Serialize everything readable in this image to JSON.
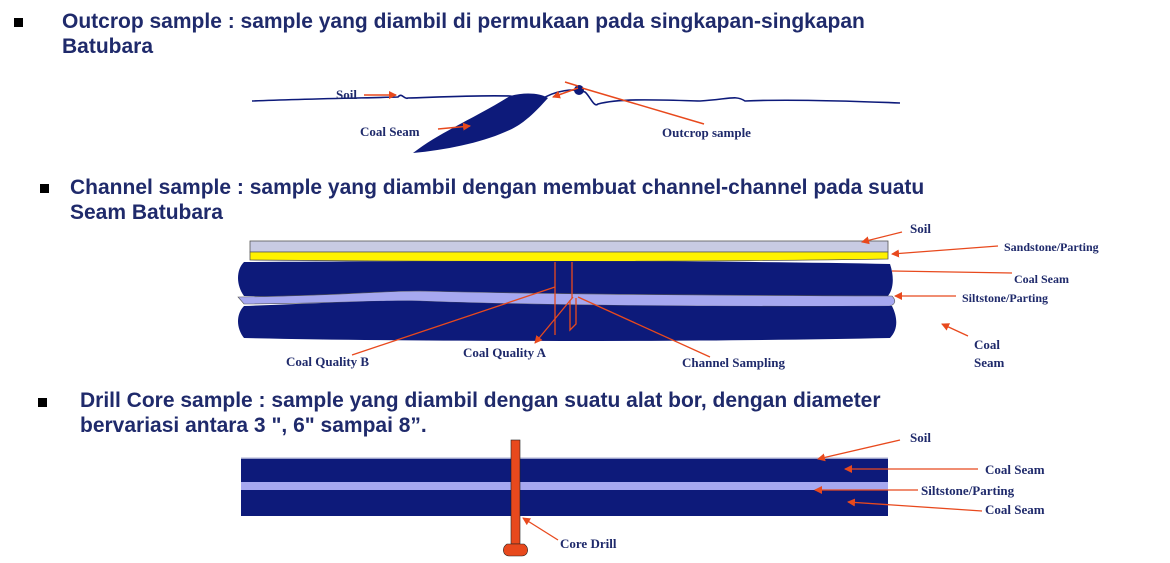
{
  "sections": [
    {
      "line1": "Outcrop sample : sample yang diambil di permukaan pada singkapan-singkapan",
      "line2": "Batubara"
    },
    {
      "line1": "Channel sample : sample yang diambil dengan membuat channel-channel pada suatu",
      "line2": "Seam Batubara"
    },
    {
      "line1": "Drill Core sample : sample yang diambil dengan suatu alat bor, dengan diameter",
      "line2": "bervariasi antara 3  \", 6\" sampai 8”."
    }
  ],
  "outcrop_labels": {
    "soil": "Soil",
    "coal_seam": "Coal Seam",
    "outcrop_sample": "Outcrop sample"
  },
  "channel_labels": {
    "soil": "Soil",
    "sandstone": "Sandstone/Parting",
    "coal_seam": "Coal Seam",
    "siltstone": "Siltstone/Parting",
    "coal": "Coal",
    "seam": "Seam",
    "quality_b": "Coal  Quality  B",
    "quality_a": "Coal  Quality  A",
    "channel_sampling": "Channel Sampling"
  },
  "drill_labels": {
    "soil": "Soil",
    "coal_seam_top": "Coal Seam",
    "siltstone": "Siltstone/Parting",
    "coal_seam_bottom": "Coal Seam",
    "core_drill": "Core Drill"
  },
  "colors": {
    "coal": "#0d1a7a",
    "soil_layer": "#c8cbe3",
    "sandstone": "#fff200",
    "siltstone": "#a6a8f0",
    "arrow": "#e8491d",
    "text": "#1f2a6b"
  }
}
